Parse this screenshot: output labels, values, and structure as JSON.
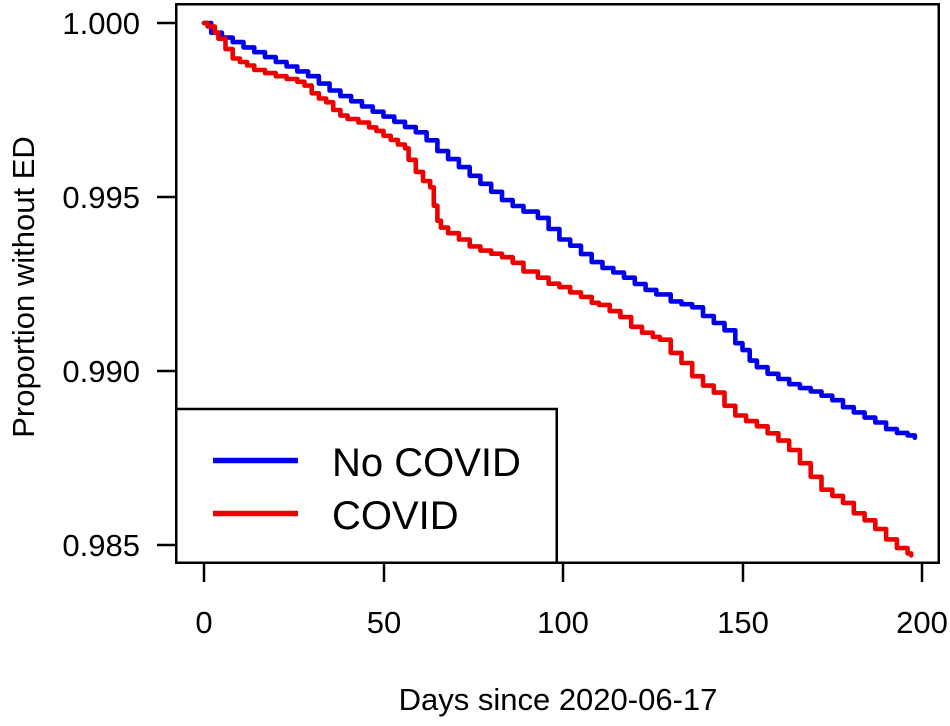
{
  "figure": {
    "background_color": "#ffffff",
    "text_color": "#000000",
    "box_color": "#000000"
  },
  "chart_data": {
    "type": "line",
    "subtype": "kaplan-meier-step-survival",
    "title": "",
    "xlabel": "Days since 2020-06-17",
    "ylabel": "Proportion without ED",
    "xlim": [
      0,
      200
    ],
    "ylim": [
      0.985,
      1.0
    ],
    "grid": false,
    "x_ticks": [
      0,
      50,
      100,
      150,
      200
    ],
    "x_tick_labels": [
      "0",
      "50",
      "100",
      "150",
      "200"
    ],
    "y_ticks": [
      1.0,
      0.995,
      0.99,
      0.985
    ],
    "y_tick_labels": [
      "1.000",
      "0.995",
      "0.990",
      "0.985"
    ],
    "legend": {
      "position": "bottom-left",
      "entries": [
        {
          "label": "No COVID",
          "color": "#0000ee"
        },
        {
          "label": "COVID",
          "color": "#ee0000"
        }
      ]
    },
    "series": [
      {
        "name": "No COVID",
        "color": "#0000ee",
        "points": [
          [
            0,
            1.0
          ],
          [
            2,
            0.99972
          ],
          [
            5,
            0.99958
          ],
          [
            8,
            0.99945
          ],
          [
            11,
            0.9993
          ],
          [
            14,
            0.99916
          ],
          [
            17,
            0.99902
          ],
          [
            20,
            0.99888
          ],
          [
            23,
            0.99875
          ],
          [
            26,
            0.99861
          ],
          [
            29,
            0.99847
          ],
          [
            32,
            0.99826
          ],
          [
            35,
            0.99806
          ],
          [
            38,
            0.9979
          ],
          [
            41,
            0.99775
          ],
          [
            44,
            0.9976
          ],
          [
            47,
            0.99745
          ],
          [
            50,
            0.99731
          ],
          [
            53,
            0.99716
          ],
          [
            56,
            0.99701
          ],
          [
            59,
            0.99686
          ],
          [
            62,
            0.99663
          ],
          [
            65,
            0.99632
          ],
          [
            68,
            0.99609
          ],
          [
            71,
            0.99586
          ],
          [
            74,
            0.99561
          ],
          [
            77,
            0.99538
          ],
          [
            80,
            0.99515
          ],
          [
            83,
            0.99491
          ],
          [
            86,
            0.99474
          ],
          [
            89,
            0.99458
          ],
          [
            93,
            0.9944
          ],
          [
            96,
            0.99408
          ],
          [
            99,
            0.99378
          ],
          [
            102,
            0.9936
          ],
          [
            105,
            0.99336
          ],
          [
            108,
            0.99313
          ],
          [
            111,
            0.99296
          ],
          [
            114,
            0.99283
          ],
          [
            117,
            0.99268
          ],
          [
            120,
            0.9925
          ],
          [
            123,
            0.99233
          ],
          [
            126,
            0.9922
          ],
          [
            130,
            0.992
          ],
          [
            133,
            0.99192
          ],
          [
            136,
            0.99183
          ],
          [
            139,
            0.99158
          ],
          [
            142,
            0.99138
          ],
          [
            145,
            0.99117
          ],
          [
            148,
            0.9908
          ],
          [
            150,
            0.9906
          ],
          [
            152,
            0.9903
          ],
          [
            154,
            0.99011
          ],
          [
            157,
            0.98992
          ],
          [
            160,
            0.98977
          ],
          [
            163,
            0.98962
          ],
          [
            166,
            0.98951
          ],
          [
            169,
            0.98941
          ],
          [
            172,
            0.98929
          ],
          [
            175,
            0.98916
          ],
          [
            178,
            0.98896
          ],
          [
            181,
            0.98881
          ],
          [
            184,
            0.98866
          ],
          [
            187,
            0.98852
          ],
          [
            190,
            0.98833
          ],
          [
            193,
            0.98822
          ],
          [
            196,
            0.98815
          ],
          [
            198,
            0.98808
          ]
        ]
      },
      {
        "name": "COVID",
        "color": "#ee0000",
        "points": [
          [
            0,
            1.0
          ],
          [
            1,
            0.9999
          ],
          [
            3,
            0.99972
          ],
          [
            4,
            0.99955
          ],
          [
            6,
            0.99925
          ],
          [
            8,
            0.99898
          ],
          [
            10,
            0.99888
          ],
          [
            12,
            0.99878
          ],
          [
            14,
            0.99865
          ],
          [
            17,
            0.99856
          ],
          [
            20,
            0.99847
          ],
          [
            23,
            0.99839
          ],
          [
            26,
            0.99831
          ],
          [
            28,
            0.9982
          ],
          [
            30,
            0.99798
          ],
          [
            32,
            0.99783
          ],
          [
            34,
            0.99772
          ],
          [
            36,
            0.9975
          ],
          [
            38,
            0.99734
          ],
          [
            40,
            0.99724
          ],
          [
            43,
            0.99714
          ],
          [
            46,
            0.997
          ],
          [
            48,
            0.9969
          ],
          [
            50,
            0.99676
          ],
          [
            52,
            0.99664
          ],
          [
            54,
            0.99651
          ],
          [
            56,
            0.9964
          ],
          [
            57,
            0.99607
          ],
          [
            59,
            0.99572
          ],
          [
            61,
            0.99546
          ],
          [
            63,
            0.99528
          ],
          [
            64,
            0.99475
          ],
          [
            65,
            0.99432
          ],
          [
            66,
            0.99412
          ],
          [
            68,
            0.99396
          ],
          [
            71,
            0.99378
          ],
          [
            74,
            0.99358
          ],
          [
            77,
            0.99346
          ],
          [
            80,
            0.99337
          ],
          [
            83,
            0.99327
          ],
          [
            86,
            0.99311
          ],
          [
            89,
            0.99286
          ],
          [
            93,
            0.99268
          ],
          [
            96,
            0.99251
          ],
          [
            99,
            0.99241
          ],
          [
            102,
            0.99226
          ],
          [
            105,
            0.99213
          ],
          [
            108,
            0.99196
          ],
          [
            110,
            0.9919
          ],
          [
            113,
            0.99172
          ],
          [
            116,
            0.99155
          ],
          [
            119,
            0.99127
          ],
          [
            122,
            0.9911
          ],
          [
            125,
            0.99098
          ],
          [
            127,
            0.9909
          ],
          [
            130,
            0.99052
          ],
          [
            133,
            0.99023
          ],
          [
            136,
            0.98985
          ],
          [
            139,
            0.98958
          ],
          [
            142,
            0.98938
          ],
          [
            145,
            0.989
          ],
          [
            148,
            0.98872
          ],
          [
            151,
            0.98856
          ],
          [
            154,
            0.98841
          ],
          [
            157,
            0.98821
          ],
          [
            160,
            0.988
          ],
          [
            163,
            0.98773
          ],
          [
            166,
            0.98735
          ],
          [
            169,
            0.98696
          ],
          [
            172,
            0.98659
          ],
          [
            175,
            0.98641
          ],
          [
            178,
            0.98621
          ],
          [
            181,
            0.98591
          ],
          [
            184,
            0.98571
          ],
          [
            187,
            0.98546
          ],
          [
            190,
            0.98516
          ],
          [
            193,
            0.98491
          ],
          [
            196,
            0.98476
          ],
          [
            197,
            0.9847
          ]
        ]
      }
    ]
  }
}
